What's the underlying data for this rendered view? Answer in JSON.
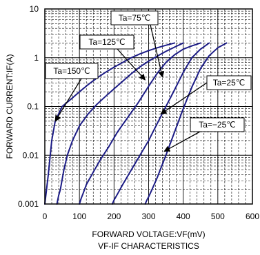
{
  "chart_data": {
    "type": "line",
    "title": "VF-IF CHARACTERISTICS",
    "xlabel": "FORWARD VOLTAGE:VF(mV)",
    "ylabel": "FORWARD CURRENT:IF(A)",
    "xlim": [
      0,
      600
    ],
    "ylim": [
      0.001,
      10
    ],
    "y_scale": "log",
    "grid": true,
    "line_color": "#1c1c86",
    "x_ticks": [
      "0",
      "100",
      "200",
      "300",
      "400",
      "500",
      "600"
    ],
    "y_ticks": [
      "0.001",
      "0.01",
      "0.1",
      "1",
      "10"
    ],
    "series": [
      {
        "name": "Ta=150℃",
        "x": [
          0,
          5,
          10,
          20,
          30,
          50,
          75,
          100,
          125,
          150,
          175,
          200,
          225,
          250,
          275,
          300,
          325,
          350,
          375
        ],
        "y": [
          0.001,
          0.002,
          0.004,
          0.02,
          0.05,
          0.1,
          0.14,
          0.2,
          0.28,
          0.38,
          0.5,
          0.64,
          0.8,
          1.0,
          1.2,
          1.4,
          1.6,
          1.8,
          2.0
        ]
      },
      {
        "name": "Ta=125℃",
        "x": [
          35,
          40,
          45,
          55,
          65,
          80,
          100,
          125,
          150,
          175,
          200,
          225,
          250,
          275,
          300,
          325,
          350,
          375,
          400
        ],
        "y": [
          0.001,
          0.0015,
          0.002,
          0.005,
          0.01,
          0.02,
          0.04,
          0.07,
          0.11,
          0.16,
          0.23,
          0.33,
          0.47,
          0.65,
          0.85,
          1.08,
          1.35,
          1.65,
          2.0
        ]
      },
      {
        "name": "Ta=75℃",
        "x": [
          100,
          105,
          110,
          120,
          140,
          160,
          185,
          210,
          240,
          270,
          300,
          325,
          350,
          375,
          400,
          425,
          450
        ],
        "y": [
          0.001,
          0.0013,
          0.0016,
          0.0025,
          0.0045,
          0.008,
          0.015,
          0.03,
          0.06,
          0.12,
          0.26,
          0.48,
          0.8,
          1.15,
          1.5,
          1.75,
          2.0
        ]
      },
      {
        "name": "Ta=25℃",
        "x": [
          195,
          200,
          210,
          225,
          250,
          275,
          300,
          325,
          350,
          375,
          400,
          425,
          450,
          475
        ],
        "y": [
          0.001,
          0.0012,
          0.0016,
          0.0025,
          0.005,
          0.01,
          0.02,
          0.045,
          0.1,
          0.22,
          0.5,
          1.0,
          1.5,
          2.0
        ]
      },
      {
        "name": "Ta=-25℃",
        "x": [
          290,
          295,
          300,
          310,
          325,
          350,
          375,
          400,
          425,
          450,
          475,
          500,
          525
        ],
        "y": [
          0.001,
          0.0012,
          0.0014,
          0.002,
          0.0035,
          0.01,
          0.03,
          0.09,
          0.25,
          0.6,
          1.1,
          1.6,
          2.0
        ]
      }
    ],
    "annotations": [
      {
        "text": "Ta=75℃",
        "series": 2,
        "point": [
          340,
          0.4
        ]
      },
      {
        "text": "Ta=125℃",
        "series": 1,
        "point": [
          290,
          0.35
        ]
      },
      {
        "text": "Ta=150℃",
        "series": 0,
        "point": [
          30,
          0.05
        ]
      },
      {
        "text": "Ta=25℃",
        "series": 3,
        "point": [
          335,
          0.07
        ]
      },
      {
        "text": "Ta=−25℃",
        "series": 4,
        "point": [
          345,
          0.012
        ]
      }
    ]
  }
}
